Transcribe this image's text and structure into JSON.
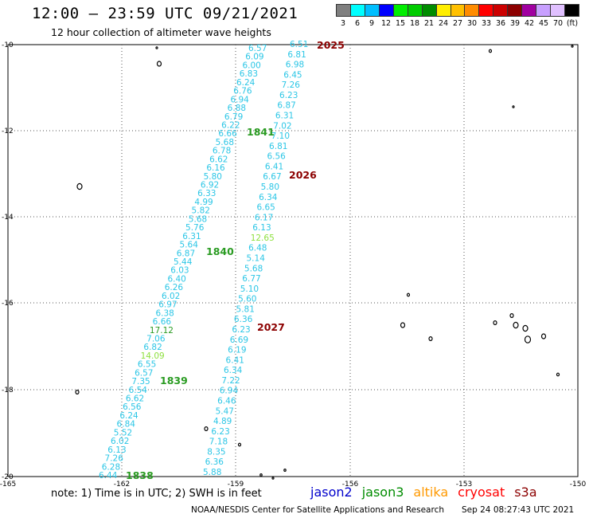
{
  "title": "12:00 – 23:59 UTC 09/21/2021",
  "subtitle": "12 hour collection of altimeter wave heights",
  "colorbar": {
    "labels": [
      "3",
      "6",
      "9",
      "12",
      "15",
      "18",
      "21",
      "24",
      "27",
      "30",
      "33",
      "36",
      "39",
      "42",
      "45",
      "70",
      "(ft)"
    ],
    "colors": [
      "#7f7f7f",
      "#00ffff",
      "#00bfff",
      "#0000ff",
      "#00ee00",
      "#00cc00",
      "#008c00",
      "#ffee00",
      "#ffc000",
      "#ff8c00",
      "#ff0000",
      "#cc0000",
      "#8c0000",
      "#a000a0",
      "#c8a0ff",
      "#e0c0ff",
      "#000000"
    ]
  },
  "axes": {
    "lat_labels": [
      "-10",
      "-12",
      "-14",
      "-16",
      "-18",
      "-20"
    ],
    "lon_labels": [
      "-165",
      "-162",
      "-159",
      "-156",
      "-153",
      "-150"
    ]
  },
  "tracks": [
    {
      "tag": "2025",
      "tag_color": "#8c0000"
    },
    {
      "tag": "1841",
      "tag_color": "#2a9b22"
    },
    {
      "tag": "2026",
      "tag_color": "#8c0000"
    },
    {
      "tag": "1840",
      "tag_color": "#2a9b22"
    },
    {
      "tag": "2027",
      "tag_color": "#8c0000"
    },
    {
      "tag": "1839",
      "tag_color": "#2a9b22"
    },
    {
      "tag": "1838",
      "tag_color": "#2a9b22"
    }
  ],
  "track_right_values": [
    "6.51",
    "6.81",
    "6.98",
    "6.45",
    "7.26",
    "6.23",
    "6.87",
    "6.31",
    "7.02",
    "7.10",
    "6.81",
    "6.56",
    "6.41",
    "6.67",
    "5.80",
    "6.34",
    "6.65",
    "6.17",
    "6.13",
    "12.65",
    "6.48",
    "5.14",
    "5.68",
    "6.77",
    "5.10",
    "5.60",
    "5.81",
    "6.36",
    "6.23",
    "6.69",
    "6.19",
    "6.41",
    "6.34",
    "7.22",
    "6.94",
    "6.46",
    "5.47",
    "4.89",
    "6.23",
    "7.18",
    "8.35",
    "6.36",
    "5.88"
  ],
  "track_left_values": [
    "6.57",
    "6.09",
    "6.00",
    "6.83",
    "6.24",
    "6.76",
    "6.94",
    "6.88",
    "6.79",
    "6.22",
    "6.66",
    "5.68",
    "6.78",
    "6.62",
    "6.16",
    "5.80",
    "6.92",
    "6.33",
    "4.99",
    "5.82",
    "5.68",
    "5.76",
    "6.31",
    "5.64",
    "6.87",
    "5.44",
    "6.03",
    "6.40",
    "6.26",
    "6.02",
    "6.97",
    "6.38",
    "6.66",
    "17.12",
    "7.06",
    "6.82",
    "14.09",
    "6.55",
    "6.57",
    "7.35",
    "6.54",
    "6.62",
    "6.56",
    "6.24",
    "6.84",
    "5.52",
    "6.02",
    "6.13",
    "7.26",
    "6.28",
    "6.44"
  ],
  "note": "note: 1) Time is in UTC; 2) SWH is in feet",
  "satellites": [
    {
      "name": "jason2",
      "color": "#0000cc"
    },
    {
      "name": "jason3",
      "color": "#008c00"
    },
    {
      "name": "altika",
      "color": "#ff9900"
    },
    {
      "name": "cryosat",
      "color": "#ff0000"
    },
    {
      "name": "s3a",
      "color": "#8c0000"
    }
  ],
  "credit": "NOAA/NESDIS Center for Satellite Applications and Research",
  "timestamp": "Sep 24 08:27:43 UTC 2021"
}
